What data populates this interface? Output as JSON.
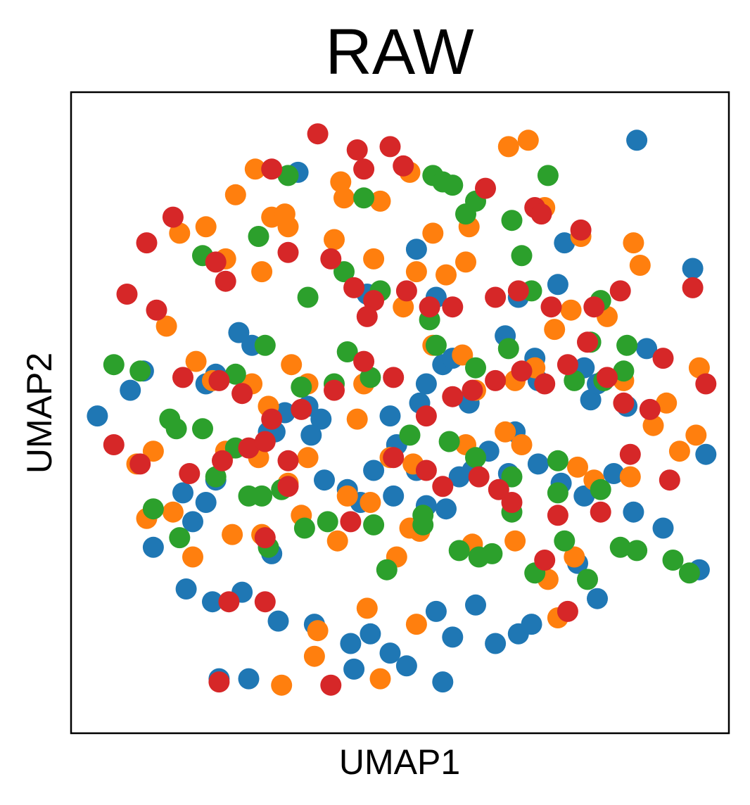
{
  "chart_data": {
    "type": "scatter",
    "title": "RAW",
    "xlabel": "UMAP1",
    "ylabel": "UMAP2",
    "xlim": [
      -10,
      10
    ],
    "ylim": [
      -10,
      10
    ],
    "grid": false,
    "legend": "none",
    "ticks_visible": false,
    "series": [
      {
        "color": "#1f77b4",
        "points": [
          [
            -3.1,
            7.5
          ],
          [
            7.2,
            8.5
          ],
          [
            -3.8,
            -0.6
          ],
          [
            -4.0,
            -0.6
          ],
          [
            -2.4,
            -0.2
          ],
          [
            1.3,
            1.5
          ],
          [
            -8.2,
            0.7
          ],
          [
            -6.6,
            -2.5
          ],
          [
            -7.5,
            -4.2
          ],
          [
            -6.3,
            -3.4
          ],
          [
            -5.9,
            -2.8
          ],
          [
            -5.6,
            -2.1
          ],
          [
            -1.6,
            -2.4
          ],
          [
            -1.2,
            -2.8
          ],
          [
            -0.8,
            -1.8
          ],
          [
            -0.2,
            -2.6
          ],
          [
            0.8,
            -2.9
          ],
          [
            1.4,
            -3.0
          ],
          [
            1.8,
            -2.0
          ],
          [
            2.7,
            -1.2
          ],
          [
            3.5,
            -0.6
          ],
          [
            4.2,
            -1.6
          ],
          [
            4.9,
            -2.2
          ],
          [
            5.6,
            -2.6
          ],
          [
            6.5,
            -1.9
          ],
          [
            7.1,
            -3.1
          ],
          [
            8.0,
            -3.6
          ],
          [
            9.1,
            -4.9
          ],
          [
            -6.5,
            -5.5
          ],
          [
            -5.7,
            -5.9
          ],
          [
            -4.8,
            -5.6
          ],
          [
            -3.7,
            -6.5
          ],
          [
            -2.6,
            -6.6
          ],
          [
            -1.5,
            -7.2
          ],
          [
            -0.9,
            -6.9
          ],
          [
            -0.3,
            -7.5
          ],
          [
            0.2,
            -7.9
          ],
          [
            1.1,
            -6.2
          ],
          [
            1.6,
            -7.0
          ],
          [
            2.3,
            -6.0
          ],
          [
            2.9,
            -7.2
          ],
          [
            3.6,
            -6.9
          ],
          [
            4.0,
            -6.6
          ],
          [
            5.4,
            -4.7
          ],
          [
            6.0,
            -5.8
          ],
          [
            -5.5,
            -8.3
          ],
          [
            -4.6,
            -8.3
          ],
          [
            1.3,
            -8.4
          ],
          [
            -1.4,
            -8.0
          ],
          [
            -0.1,
            -1.0
          ],
          [
            -2.8,
            0.2
          ],
          [
            0.8,
            0.9
          ],
          [
            1.6,
            1.7
          ],
          [
            3.2,
            2.4
          ],
          [
            4.2,
            1.0
          ],
          [
            5.6,
            1.4
          ],
          [
            6.9,
            0.2
          ],
          [
            8.9,
            4.5
          ],
          [
            -5.6,
            1.2
          ],
          [
            -3.5,
            0.0
          ],
          [
            -4.9,
            2.5
          ],
          [
            -5.9,
            0.9
          ],
          [
            -7.8,
            1.3
          ],
          [
            -9.2,
            -0.1
          ],
          [
            -4.5,
            2.1
          ],
          [
            3.6,
            3.6
          ],
          [
            5.0,
            5.3
          ],
          [
            4.8,
            4.0
          ],
          [
            -1.0,
            3.7
          ],
          [
            0.5,
            5.1
          ],
          [
            1.1,
            3.6
          ],
          [
            9.3,
            -1.3
          ],
          [
            4.1,
            1.7
          ],
          [
            5.8,
            0.4
          ],
          [
            -0.3,
            -0.1
          ],
          [
            0.6,
            0.3
          ],
          [
            -2.7,
            -0.7
          ],
          [
            2.2,
            -1.8
          ],
          [
            3.3,
            -1.9
          ],
          [
            -3.9,
            -4.4
          ],
          [
            -2.3,
            -2.1
          ],
          [
            0.5,
            -1.8
          ],
          [
            6.0,
            0.9
          ],
          [
            7.5,
            2.0
          ],
          [
            2.1,
            0.3
          ]
        ]
      },
      {
        "color": "#ff7f0e",
        "points": [
          [
            -4.4,
            7.6
          ],
          [
            -5.0,
            6.8
          ],
          [
            -3.9,
            6.1
          ],
          [
            -3.5,
            6.2
          ],
          [
            -1.8,
            7.2
          ],
          [
            -1.7,
            6.7
          ],
          [
            -0.6,
            6.6
          ],
          [
            0.3,
            7.5
          ],
          [
            1.0,
            5.6
          ],
          [
            2.0,
            4.7
          ],
          [
            3.3,
            8.3
          ],
          [
            3.9,
            8.5
          ],
          [
            4.4,
            6.4
          ],
          [
            5.5,
            5.5
          ],
          [
            7.1,
            5.3
          ],
          [
            7.3,
            4.6
          ],
          [
            -5.9,
            5.8
          ],
          [
            -6.7,
            5.6
          ],
          [
            -5.3,
            4.8
          ],
          [
            -4.2,
            4.4
          ],
          [
            -3.4,
            5.8
          ],
          [
            -2.0,
            5.4
          ],
          [
            -0.8,
            4.8
          ],
          [
            0.5,
            4.4
          ],
          [
            1.4,
            4.3
          ],
          [
            2.1,
            5.8
          ],
          [
            -7.1,
            2.7
          ],
          [
            -6.2,
            1.6
          ],
          [
            -5.7,
            1.0
          ],
          [
            -4.5,
            0.9
          ],
          [
            -4.0,
            0.2
          ],
          [
            -3.3,
            1.5
          ],
          [
            -2.8,
            0.9
          ],
          [
            -1.1,
            0.9
          ],
          [
            0.1,
            3.3
          ],
          [
            1.0,
            2.1
          ],
          [
            1.9,
            1.8
          ],
          [
            2.3,
            0.7
          ],
          [
            3.5,
            1.0
          ],
          [
            4.1,
            1.4
          ],
          [
            4.7,
            2.6
          ],
          [
            5.2,
            3.2
          ],
          [
            6.3,
            3.0
          ],
          [
            6.8,
            1.0
          ],
          [
            8.1,
            0.3
          ],
          [
            9.1,
            1.4
          ],
          [
            9.0,
            -0.7
          ],
          [
            7.7,
            -0.4
          ],
          [
            -7.5,
            -1.2
          ],
          [
            -8.0,
            -1.6
          ],
          [
            -6.9,
            -3.1
          ],
          [
            -5.3,
            -1.2
          ],
          [
            -4.3,
            -1.4
          ],
          [
            -3.4,
            -2.2
          ],
          [
            -2.8,
            -1.4
          ],
          [
            -1.3,
            -0.2
          ],
          [
            -0.3,
            -1.4
          ],
          [
            0.4,
            -1.6
          ],
          [
            2.0,
            -1.0
          ],
          [
            3.2,
            -0.6
          ],
          [
            3.7,
            -1.0
          ],
          [
            5.4,
            -1.7
          ],
          [
            5.9,
            -2.1
          ],
          [
            7.0,
            -2.0
          ],
          [
            8.5,
            -1.2
          ],
          [
            -7.7,
            -3.3
          ],
          [
            -5.1,
            -3.8
          ],
          [
            -4.2,
            -3.8
          ],
          [
            -3.0,
            -3.2
          ],
          [
            -1.6,
            -2.6
          ],
          [
            -0.9,
            -2.8
          ],
          [
            0.6,
            -3.7
          ],
          [
            2.2,
            -4.1
          ],
          [
            3.5,
            -4.0
          ],
          [
            4.5,
            -5.2
          ],
          [
            5.3,
            -4.5
          ],
          [
            4.8,
            -6.4
          ],
          [
            0.5,
            -6.6
          ],
          [
            0.3,
            -3.6
          ],
          [
            -2.6,
            -7.6
          ],
          [
            -3.6,
            -8.5
          ],
          [
            -0.6,
            -8.3
          ],
          [
            -1.9,
            -4.0
          ],
          [
            -0.1,
            -4.5
          ],
          [
            -6.3,
            -4.5
          ],
          [
            -2.5,
            -6.8
          ],
          [
            -1.0,
            -6.1
          ]
        ]
      },
      {
        "color": "#2ca02c",
        "points": [
          [
            -3.4,
            7.4
          ],
          [
            -1.1,
            6.7
          ],
          [
            1.0,
            7.4
          ],
          [
            1.3,
            7.2
          ],
          [
            1.6,
            7.1
          ],
          [
            2.3,
            6.6
          ],
          [
            2.0,
            6.2
          ],
          [
            3.4,
            6.0
          ],
          [
            3.7,
            4.9
          ],
          [
            4.5,
            7.4
          ],
          [
            -4.3,
            5.5
          ],
          [
            -6.0,
            4.9
          ],
          [
            -2.8,
            3.6
          ],
          [
            -1.7,
            4.4
          ],
          [
            -0.6,
            3.8
          ],
          [
            0.9,
            2.9
          ],
          [
            1.1,
            2.1
          ],
          [
            2.3,
            1.4
          ],
          [
            3.3,
            2.0
          ],
          [
            4.0,
            3.8
          ],
          [
            5.3,
            1.0
          ],
          [
            5.8,
            2.2
          ],
          [
            6.1,
            3.5
          ],
          [
            6.9,
            2.1
          ],
          [
            -8.7,
            1.5
          ],
          [
            -7.9,
            1.3
          ],
          [
            -7.0,
            -0.2
          ],
          [
            -6.0,
            -0.5
          ],
          [
            -5.0,
            1.2
          ],
          [
            -4.1,
            2.1
          ],
          [
            -3.0,
            0.8
          ],
          [
            -2.0,
            0.9
          ],
          [
            -1.6,
            1.9
          ],
          [
            -0.9,
            1.1
          ],
          [
            0.3,
            -0.7
          ],
          [
            1.5,
            -0.9
          ],
          [
            2.3,
            -1.4
          ],
          [
            3.4,
            -2.0
          ],
          [
            4.8,
            -1.5
          ],
          [
            6.1,
            -2.4
          ],
          [
            -6.8,
            -0.5
          ],
          [
            -7.5,
            -3.0
          ],
          [
            -6.7,
            -3.9
          ],
          [
            -5.6,
            -2.0
          ],
          [
            -4.2,
            -2.6
          ],
          [
            -2.9,
            -3.6
          ],
          [
            -2.2,
            -3.4
          ],
          [
            -0.8,
            -3.5
          ],
          [
            0.7,
            -3.5
          ],
          [
            1.8,
            -4.3
          ],
          [
            2.4,
            -4.5
          ],
          [
            2.8,
            -4.4
          ],
          [
            3.4,
            -3.1
          ],
          [
            4.1,
            -5.0
          ],
          [
            5.0,
            -4.0
          ],
          [
            5.7,
            -5.2
          ],
          [
            6.7,
            -4.2
          ],
          [
            7.2,
            -4.3
          ],
          [
            8.3,
            -4.6
          ],
          [
            8.8,
            -5.0
          ],
          [
            -4.0,
            -4.2
          ],
          [
            -4.6,
            -2.6
          ],
          [
            -0.4,
            -4.9
          ],
          [
            0.7,
            -3.2
          ],
          [
            6.8,
            1.3
          ],
          [
            6.2,
            1.0
          ],
          [
            4.8,
            -2.5
          ],
          [
            -5.0,
            -1.1
          ],
          [
            -3.6,
            -2.4
          ]
        ]
      },
      {
        "color": "#d62728",
        "points": [
          [
            -3.9,
            7.6
          ],
          [
            -2.5,
            8.7
          ],
          [
            -1.3,
            8.2
          ],
          [
            -0.3,
            8.3
          ],
          [
            0.1,
            7.7
          ],
          [
            2.6,
            7.0
          ],
          [
            4.1,
            6.4
          ],
          [
            4.3,
            6.2
          ],
          [
            5.5,
            5.7
          ],
          [
            -6.9,
            6.1
          ],
          [
            -7.7,
            5.3
          ],
          [
            -5.6,
            4.7
          ],
          [
            -5.3,
            4.1
          ],
          [
            -3.4,
            5.0
          ],
          [
            -2.1,
            4.8
          ],
          [
            -1.4,
            3.9
          ],
          [
            -0.8,
            3.5
          ],
          [
            0.2,
            3.8
          ],
          [
            1.6,
            3.3
          ],
          [
            2.9,
            3.6
          ],
          [
            3.6,
            3.8
          ],
          [
            4.6,
            3.3
          ],
          [
            5.9,
            3.3
          ],
          [
            6.7,
            3.8
          ],
          [
            8.9,
            3.9
          ],
          [
            -8.3,
            3.7
          ],
          [
            -7.4,
            3.2
          ],
          [
            -6.6,
            1.1
          ],
          [
            -5.5,
            1.0
          ],
          [
            -4.8,
            0.6
          ],
          [
            -3.9,
            -0.2
          ],
          [
            -3.0,
            0.1
          ],
          [
            -2.0,
            0.7
          ],
          [
            -1.1,
            1.6
          ],
          [
            -0.2,
            1.1
          ],
          [
            0.8,
            -0.1
          ],
          [
            1.6,
            0.5
          ],
          [
            2.2,
            0.7
          ],
          [
            2.9,
            1.0
          ],
          [
            3.7,
            1.3
          ],
          [
            4.4,
            0.9
          ],
          [
            5.1,
            1.5
          ],
          [
            6.3,
            1.1
          ],
          [
            6.8,
            0.3
          ],
          [
            7.6,
            0.1
          ],
          [
            8.0,
            1.7
          ],
          [
            9.3,
            0.9
          ],
          [
            -8.7,
            -1.0
          ],
          [
            -7.9,
            -1.6
          ],
          [
            -6.4,
            -1.9
          ],
          [
            -5.4,
            -1.5
          ],
          [
            -4.6,
            -1.1
          ],
          [
            -4.1,
            -0.9
          ],
          [
            -3.4,
            -1.5
          ],
          [
            -0.2,
            -1.4
          ],
          [
            0.8,
            -1.8
          ],
          [
            1.3,
            -2.3
          ],
          [
            2.4,
            -2.0
          ],
          [
            3.0,
            -2.4
          ],
          [
            3.4,
            -2.8
          ],
          [
            4.8,
            -3.2
          ],
          [
            6.1,
            -3.1
          ],
          [
            7.0,
            -1.3
          ],
          [
            8.2,
            -2.1
          ],
          [
            4.4,
            -4.6
          ],
          [
            5.1,
            -6.2
          ],
          [
            -5.2,
            -5.9
          ],
          [
            -4.1,
            -5.9
          ],
          [
            -3.4,
            -2.3
          ],
          [
            -1.5,
            -3.4
          ],
          [
            -5.5,
            -8.4
          ],
          [
            -2.1,
            -8.5
          ],
          [
            -1.1,
            7.6
          ],
          [
            -1.0,
            3.0
          ],
          [
            -4.1,
            -3.9
          ],
          [
            0.9,
            3.3
          ],
          [
            5.7,
            2.2
          ]
        ]
      }
    ]
  }
}
